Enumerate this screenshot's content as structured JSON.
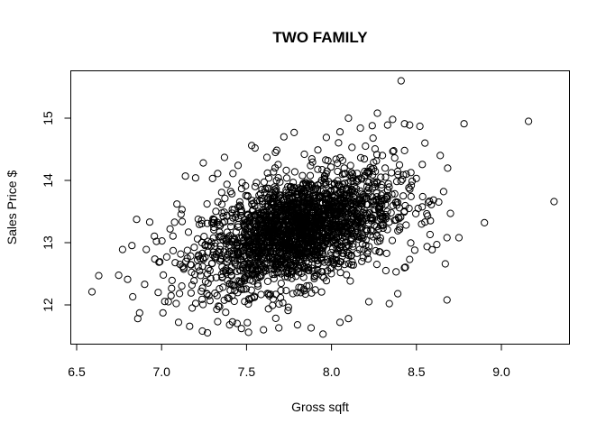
{
  "chart_data": {
    "type": "scatter",
    "title": "TWO FAMILY",
    "xlabel": "Gross sqft",
    "ylabel": "Sales Price $",
    "xlim": [
      6.5,
      9.4
    ],
    "ylim": [
      11.45,
      15.7
    ],
    "x_ticks": [
      "6.5",
      "7.0",
      "7.5",
      "8.0",
      "8.5",
      "9.0"
    ],
    "x_tick_values": [
      6.5,
      7.0,
      7.5,
      8.0,
      8.5,
      9.0
    ],
    "y_ticks": [
      "12",
      "13",
      "14",
      "15"
    ],
    "y_tick_values": [
      12,
      13,
      14,
      15
    ],
    "grid": false,
    "marker": "open-circle",
    "point_color": "#000000",
    "points": [
      [
        8.41,
        15.6
      ],
      [
        9.31,
        13.66
      ],
      [
        9.16,
        14.95
      ],
      [
        8.78,
        14.91
      ],
      [
        8.9,
        13.32
      ],
      [
        8.68,
        12.08
      ],
      [
        8.67,
        12.66
      ],
      [
        8.75,
        13.08
      ],
      [
        8.68,
        13.08
      ],
      [
        8.7,
        13.47
      ],
      [
        8.66,
        13.82
      ],
      [
        8.64,
        14.4
      ],
      [
        8.55,
        14.6
      ],
      [
        8.52,
        14.87
      ],
      [
        8.46,
        14.89
      ],
      [
        6.59,
        12.21
      ],
      [
        6.63,
        12.47
      ],
      [
        6.77,
        12.89
      ],
      [
        6.8,
        12.41
      ],
      [
        6.83,
        12.13
      ],
      [
        6.86,
        11.78
      ],
      [
        6.91,
        12.89
      ],
      [
        6.93,
        13.33
      ],
      [
        6.97,
        13.02
      ],
      [
        7.01,
        12.48
      ],
      [
        7.03,
        12.77
      ],
      [
        7.05,
        13.22
      ],
      [
        7.09,
        13.62
      ],
      [
        7.12,
        13.53
      ],
      [
        7.14,
        14.07
      ],
      [
        7.2,
        14.04
      ],
      [
        7.24,
        11.58
      ],
      [
        7.27,
        11.55
      ],
      [
        7.3,
        14.03
      ],
      [
        7.33,
        14.11
      ],
      [
        7.37,
        14.37
      ],
      [
        7.42,
        14.11
      ],
      [
        7.45,
        14.24
      ],
      [
        7.53,
        14.56
      ],
      [
        7.55,
        14.52
      ],
      [
        7.62,
        14.37
      ],
      [
        7.67,
        14.45
      ],
      [
        7.72,
        14.7
      ],
      [
        7.78,
        14.77
      ],
      [
        7.84,
        14.42
      ],
      [
        7.92,
        14.49
      ],
      [
        7.97,
        14.69
      ],
      [
        8.05,
        14.78
      ],
      [
        8.1,
        15.0
      ],
      [
        8.17,
        14.84
      ],
      [
        8.24,
        14.88
      ],
      [
        8.27,
        15.08
      ],
      [
        8.33,
        14.89
      ],
      [
        8.36,
        14.98
      ],
      [
        8.43,
        14.91
      ],
      [
        8.43,
        14.48
      ],
      [
        8.38,
        12.53
      ],
      [
        8.46,
        12.73
      ],
      [
        8.39,
        12.18
      ],
      [
        8.34,
        12.02
      ],
      [
        8.22,
        12.05
      ],
      [
        8.1,
        11.78
      ],
      [
        8.05,
        11.72
      ],
      [
        7.95,
        11.53
      ],
      [
        7.88,
        11.63
      ],
      [
        7.8,
        11.68
      ],
      [
        7.69,
        11.63
      ],
      [
        7.6,
        11.6
      ],
      [
        7.47,
        11.62
      ],
      [
        7.4,
        11.68
      ],
      [
        7.33,
        11.73
      ],
      [
        7.18,
        11.95
      ],
      [
        7.1,
        11.72
      ],
      [
        7.04,
        12.05
      ],
      [
        6.98,
        12.2
      ],
      [
        6.9,
        12.33
      ],
      [
        8.55,
        13.33
      ],
      [
        8.58,
        13.13
      ],
      [
        8.62,
        12.97
      ],
      [
        8.49,
        12.88
      ],
      [
        8.51,
        13.55
      ],
      [
        8.47,
        13.92
      ],
      [
        8.44,
        14.1
      ],
      [
        8.4,
        14.25
      ],
      [
        8.3,
        14.4
      ],
      [
        8.2,
        14.55
      ],
      [
        7.46,
        13.6
      ],
      [
        7.52,
        12.4
      ],
      [
        7.69,
        12.95
      ],
      [
        8.12,
        13.85
      ],
      [
        8.32,
        12.55
      ],
      [
        7.25,
        13.1
      ],
      [
        7.95,
        13.05
      ]
    ]
  }
}
